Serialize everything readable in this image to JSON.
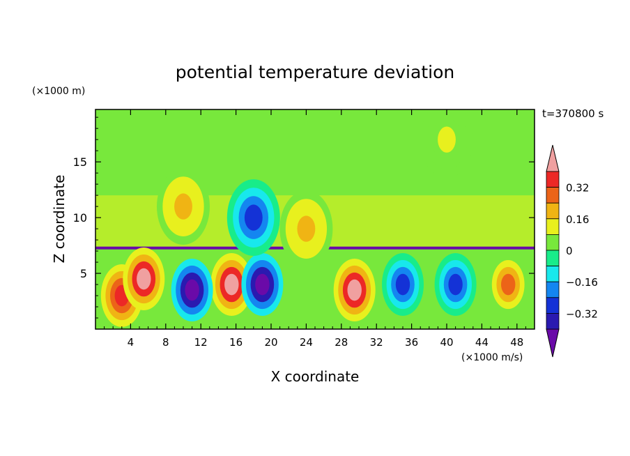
{
  "chart_data": {
    "type": "heatmap",
    "title": "potential temperature deviation",
    "xlabel": "X coordinate",
    "ylabel": "Z coordinate",
    "x_unit": "(×1000 m/s)",
    "y_unit": "(×1000 m)",
    "time_label": "t=370800 s",
    "xlim": [
      0,
      50
    ],
    "ylim": [
      0,
      19.7
    ],
    "x_ticks": [
      4,
      8,
      12,
      16,
      20,
      24,
      28,
      32,
      36,
      40,
      44,
      48
    ],
    "y_ticks": [
      5,
      10,
      15
    ],
    "colorbar": {
      "levels": [
        -0.4,
        -0.32,
        -0.24,
        -0.16,
        -0.08,
        0,
        0.08,
        0.16,
        0.24,
        0.32,
        0.4
      ],
      "tick_labels": [
        "0.32",
        "0.16",
        "0",
        "−0.16",
        "−0.32"
      ],
      "tick_values": [
        0.32,
        0.16,
        0,
        -0.16,
        -0.32
      ],
      "colors": [
        "#6a0aa8",
        "#2a1ab0",
        "#1432d6",
        "#1486f0",
        "#18e8ec",
        "#18ec8a",
        "#78e83c",
        "#e8f01e",
        "#f0b414",
        "#ec6418",
        "#ec2826",
        "#f0a0a0"
      ]
    },
    "features": [
      {
        "x": 3,
        "z": 3,
        "v": 0.32
      },
      {
        "x": 5.5,
        "z": 4.5,
        "v": 0.45
      },
      {
        "x": 15.5,
        "z": 4,
        "v": 0.45
      },
      {
        "x": 19,
        "z": 4,
        "v": -0.45
      },
      {
        "x": 11,
        "z": 3.5,
        "v": -0.45
      },
      {
        "x": 29.5,
        "z": 3.5,
        "v": 0.45
      },
      {
        "x": 35,
        "z": 4,
        "v": -0.3
      },
      {
        "x": 41,
        "z": 4,
        "v": -0.3
      },
      {
        "x": 47,
        "z": 4,
        "v": 0.3
      },
      {
        "x": 18,
        "z": 10,
        "v": -0.28
      },
      {
        "x": 10,
        "z": 11,
        "v": 0.2
      },
      {
        "x": 24,
        "z": 9,
        "v": 0.2
      },
      {
        "x": 40,
        "z": 17,
        "v": 0.08
      }
    ]
  }
}
